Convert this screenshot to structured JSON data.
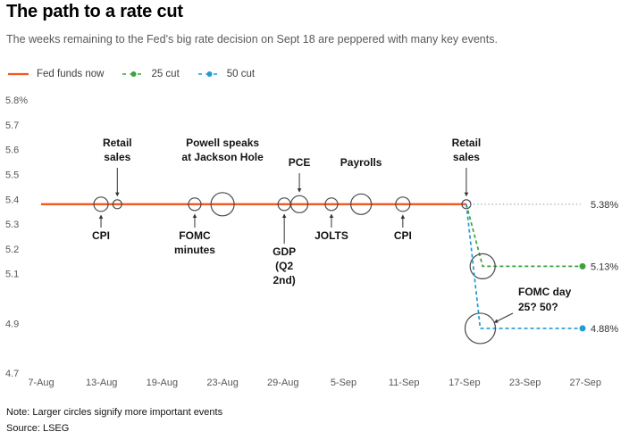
{
  "chart_data": {
    "type": "line",
    "title": "The path to a rate cut",
    "subtitle": "The weeks remaining to the Fed's big rate decision on Sept 18 are peppered with many key events.",
    "legend_position": "top",
    "ylim": [
      4.7,
      5.8
    ],
    "y_ticks": [
      {
        "label": "5.8%",
        "value": 5.8
      },
      {
        "label": "5.7",
        "value": 5.7
      },
      {
        "label": "5.6",
        "value": 5.6
      },
      {
        "label": "5.5",
        "value": 5.5
      },
      {
        "label": "5.4",
        "value": 5.4
      },
      {
        "label": "5.3",
        "value": 5.3
      },
      {
        "label": "5.2",
        "value": 5.2
      },
      {
        "label": "5.1",
        "value": 5.1
      },
      {
        "label": "4.9",
        "value": 4.9
      },
      {
        "label": "4.7",
        "value": 4.7
      }
    ],
    "x_categories": [
      "7-Aug",
      "13-Aug",
      "19-Aug",
      "23-Aug",
      "29-Aug",
      "5-Sep",
      "11-Sep",
      "17-Sep",
      "23-Sep",
      "27-Sep"
    ],
    "series": [
      {
        "name": "Fed funds now",
        "style": "solid",
        "color": "#ee5a22",
        "value": 5.38,
        "start_index": 0,
        "end_index": 7.03,
        "end_label": "5.38%"
      },
      {
        "name": "25 cut",
        "style": "dashed",
        "color": "#3aa33e",
        "value": 5.13,
        "branch_index": 7.03,
        "elbow_index": 7.3,
        "end_label": "5.13%",
        "decision_circle_radius": 14
      },
      {
        "name": "50 cut",
        "style": "dashed",
        "color": "#1f9bd7",
        "value": 4.88,
        "branch_index": 7.03,
        "elbow_index": 7.26,
        "end_label": "4.88%",
        "decision_circle_radius": 17
      }
    ],
    "events": [
      {
        "label": "CPI",
        "x_index": 0.99,
        "radius": 8,
        "label_side": "below",
        "arrow": true
      },
      {
        "label": "Retail|sales",
        "x_index": 1.26,
        "radius": 5,
        "label_side": "above",
        "arrow": true
      },
      {
        "label": "FOMC|minutes",
        "x_index": 2.54,
        "radius": 7,
        "label_side": "below",
        "arrow": true
      },
      {
        "label": "Powell speaks|at Jackson Hole",
        "x_index": 3,
        "radius": 13,
        "label_side": "above",
        "arrow": false
      },
      {
        "label": "GDP|(Q2|2nd)",
        "x_index": 4.02,
        "radius": 7,
        "label_side": "below",
        "arrow": true
      },
      {
        "label": "PCE",
        "x_index": 4.27,
        "radius": 9.5,
        "label_side": "above",
        "arrow": true
      },
      {
        "label": "JOLTS",
        "x_index": 4.8,
        "radius": 7,
        "label_side": "below",
        "arrow": true
      },
      {
        "label": "Payrolls",
        "x_index": 5.29,
        "radius": 11.5,
        "label_side": "above",
        "arrow": false
      },
      {
        "label": "CPI",
        "x_index": 5.98,
        "radius": 8,
        "label_side": "below",
        "arrow": true
      },
      {
        "label": "Retail|sales",
        "x_index": 7.03,
        "radius": 5,
        "label_side": "above",
        "arrow": true
      }
    ],
    "annotation": {
      "text": "FOMC day|25? 50?"
    },
    "note": "Note: Larger circles signify more important events",
    "source": "Source: LSEG"
  },
  "colors": {
    "event_circle": "#4a4a4a",
    "dotted_extension": "#999999",
    "arrow": "#333333"
  }
}
